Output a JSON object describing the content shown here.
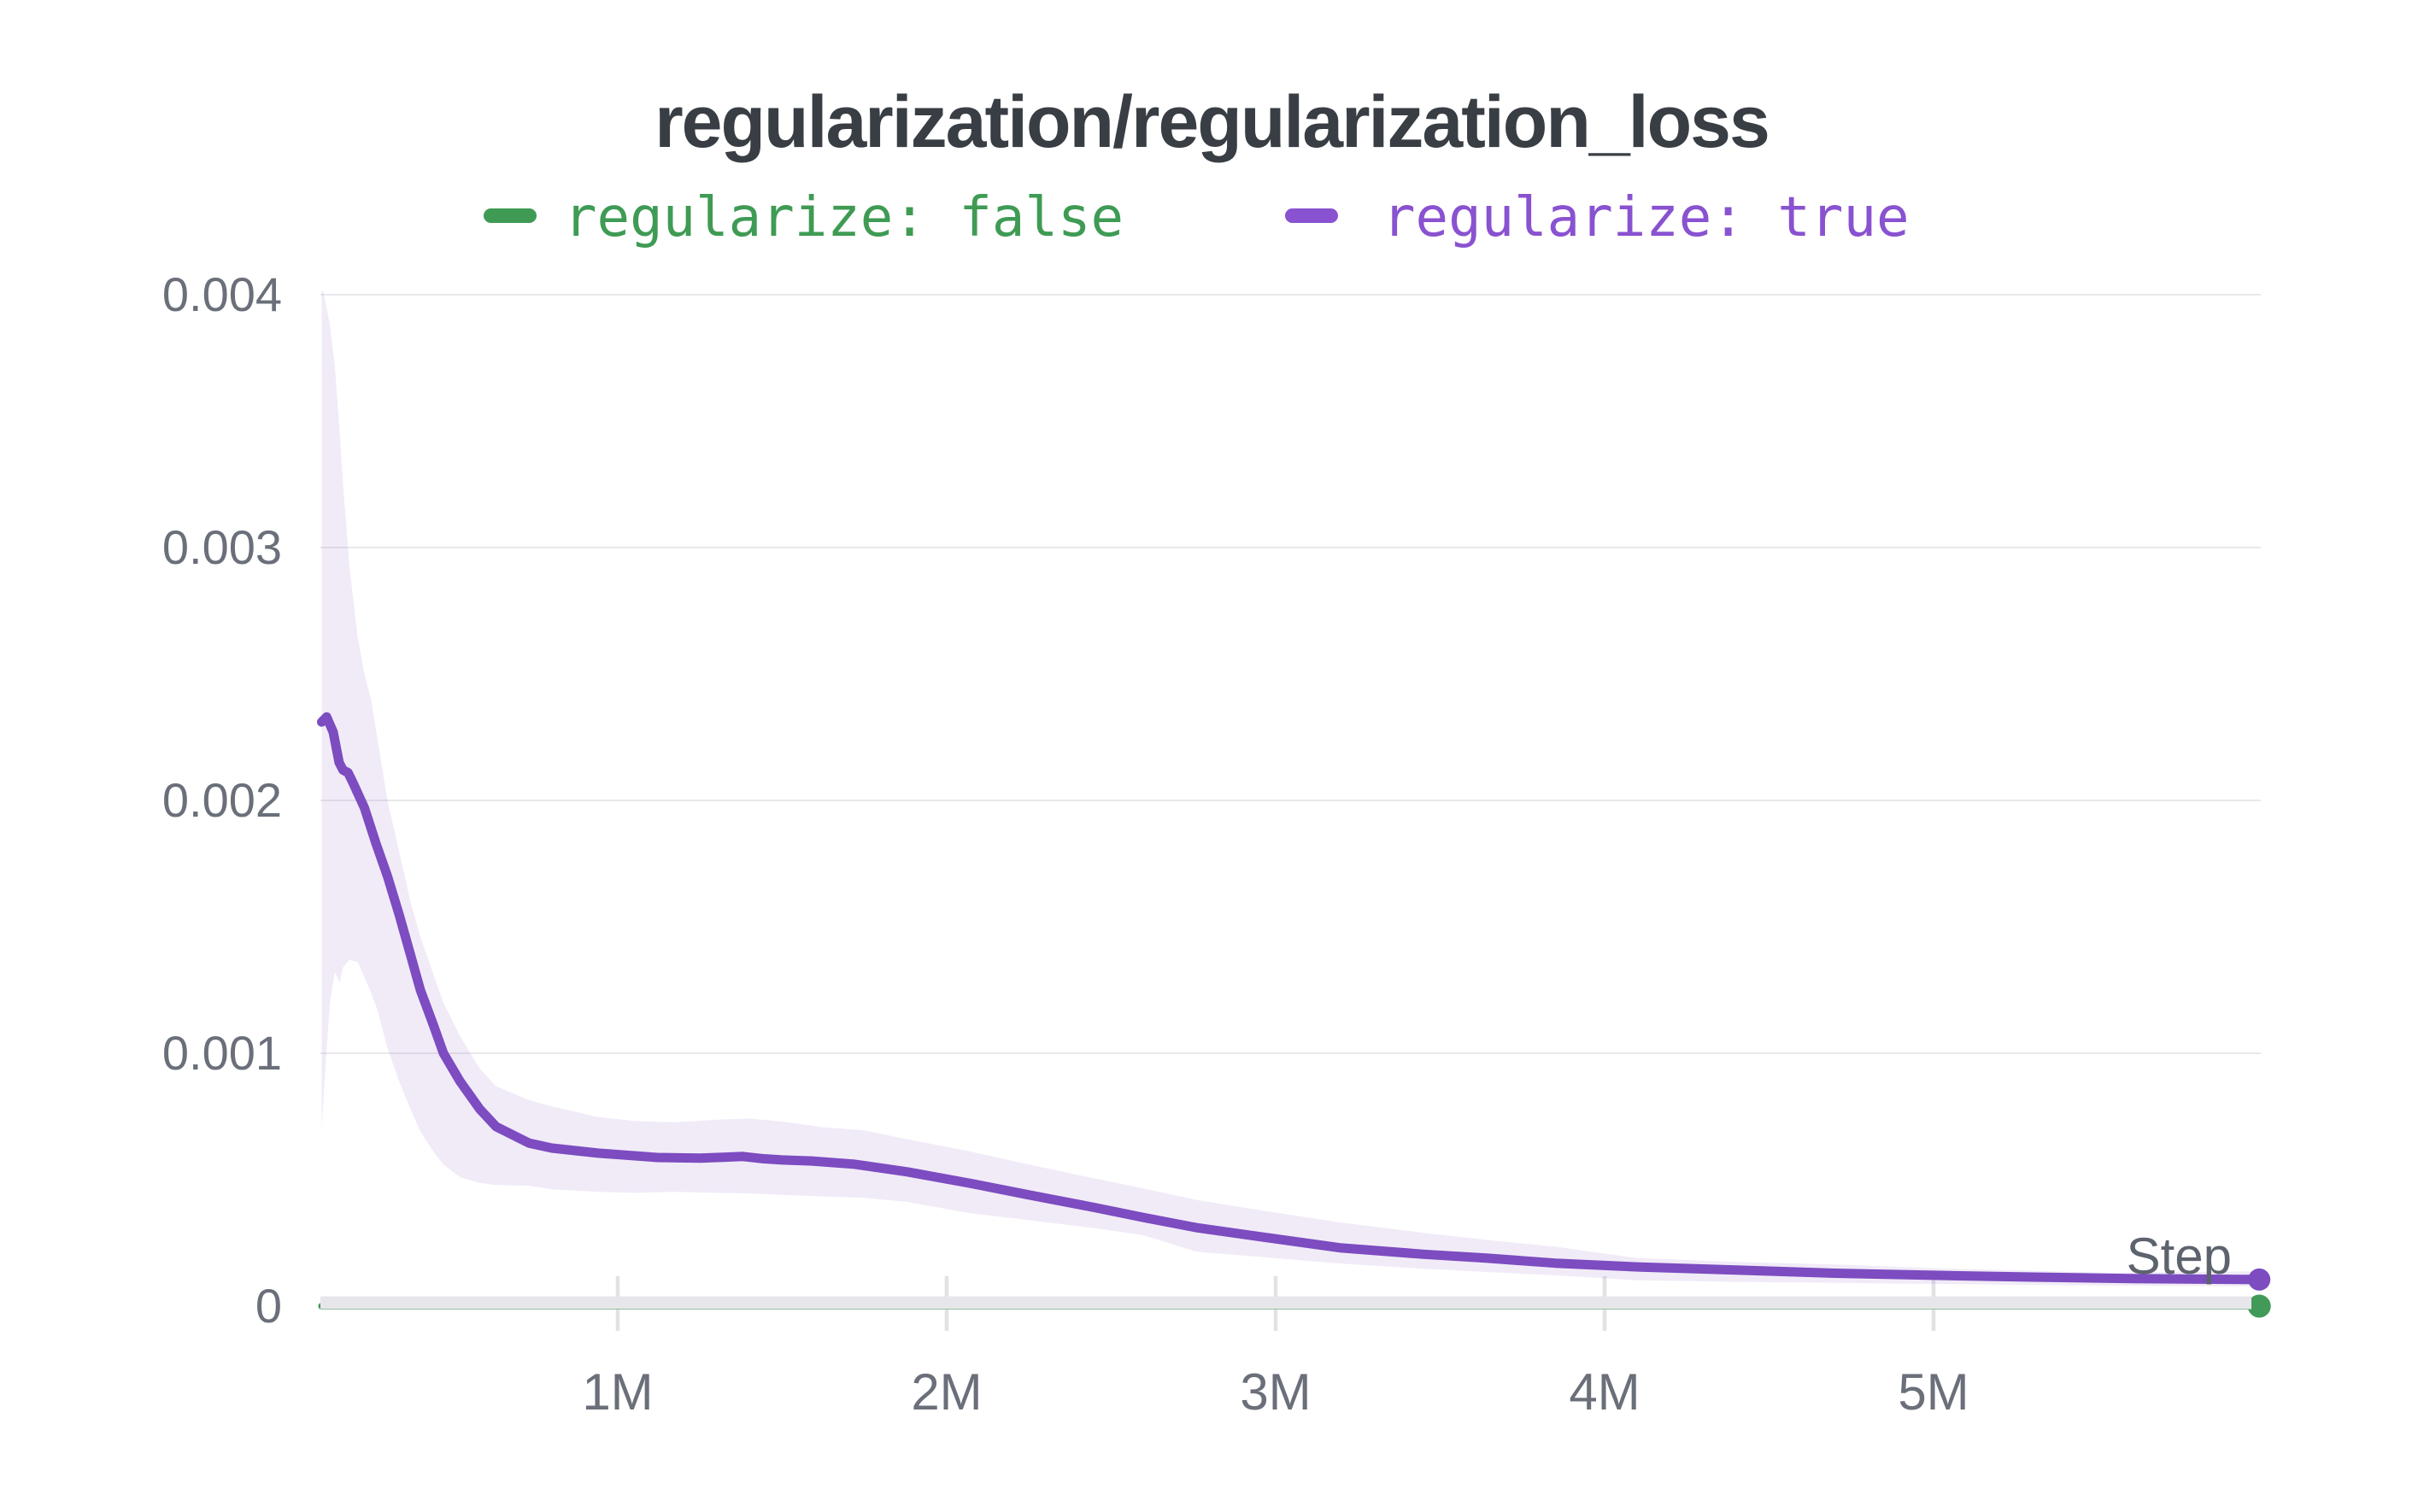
{
  "title": "regularization/regularization_loss",
  "axis": {
    "x_label": "Step",
    "y_tick_labels": [
      "0",
      "0.001",
      "0.002",
      "0.003",
      "0.004"
    ],
    "x_tick_labels": [
      "1M",
      "2M",
      "3M",
      "4M",
      "5M"
    ]
  },
  "colors": {
    "background": "#ffffff",
    "title": "#393e44",
    "gridline": "#e9e9ec",
    "axis_line": "#e7e6ea",
    "tick_mark": "#e2e1e6",
    "tick_label": "#6a6f7a",
    "step_label": "#5d636d",
    "series_false_green": "#419a58",
    "series_true_purple": "#7c4cc0",
    "band_fill": "rgba(124,76,193,0.11)"
  },
  "chart_data": {
    "type": "line",
    "title": "regularization/regularization_loss",
    "xlabel": "Step",
    "ylabel": "",
    "x_unit": "million steps",
    "xlim": [
      0.1,
      5.99
    ],
    "ylim": [
      0,
      0.004
    ],
    "grid": "horizontal",
    "legend_position": "top",
    "x_ticks": [
      {
        "value": 1,
        "label": "1M"
      },
      {
        "value": 2,
        "label": "2M"
      },
      {
        "value": 3,
        "label": "3M"
      },
      {
        "value": 4,
        "label": "4M"
      },
      {
        "value": 5,
        "label": "5M"
      }
    ],
    "y_ticks": [
      {
        "value": 0,
        "label": "0"
      },
      {
        "value": 0.001,
        "label": "0.001"
      },
      {
        "value": 0.002,
        "label": "0.002"
      },
      {
        "value": 0.003,
        "label": "0.003"
      },
      {
        "value": 0.004,
        "label": "0.004"
      }
    ],
    "series": [
      {
        "name": "regularize: false",
        "color": "#419a58",
        "legend_color": "#3f9b54",
        "endpoint_dot": true,
        "x": [
          0.1,
          5.99
        ],
        "y": [
          0,
          0
        ]
      },
      {
        "name": "regularize: true",
        "color": "#7c4cc0",
        "legend_color": "#8952d0",
        "endpoint_dot": true,
        "x": [
          0.1,
          0.115,
          0.135,
          0.153,
          0.165,
          0.18,
          0.195,
          0.23,
          0.265,
          0.3,
          0.335,
          0.37,
          0.4,
          0.44,
          0.47,
          0.52,
          0.58,
          0.63,
          0.73,
          0.8,
          0.94,
          1.12,
          1.25,
          1.32,
          1.38,
          1.44,
          1.5,
          1.59,
          1.72,
          1.88,
          2.07,
          2.25,
          2.45,
          2.6,
          2.76,
          2.95,
          3.2,
          3.45,
          3.64,
          3.85,
          4.1,
          4.4,
          4.7,
          5.0,
          5.3,
          5.6,
          5.99
        ],
        "y": [
          0.00231,
          0.00233,
          0.00227,
          0.00215,
          0.00212,
          0.00211,
          0.00207,
          0.00197,
          0.00183,
          0.0017,
          0.00155,
          0.00139,
          0.00125,
          0.00111,
          0.001,
          0.00089,
          0.00078,
          0.00071,
          0.000645,
          0.000625,
          0.000605,
          0.000588,
          0.000585,
          0.000589,
          0.000592,
          0.000583,
          0.000578,
          0.000574,
          0.000561,
          0.000531,
          0.000486,
          0.00044,
          0.00039,
          0.00035,
          0.00031,
          0.000275,
          0.00023,
          0.000205,
          0.00019,
          0.00017,
          0.000155,
          0.000143,
          0.00013,
          0.000122,
          0.000115,
          0.000109,
          0.000105
        ],
        "band": {
          "x": [
            0.1,
            0.11,
            0.125,
            0.14,
            0.155,
            0.165,
            0.185,
            0.21,
            0.23,
            0.25,
            0.27,
            0.3,
            0.335,
            0.37,
            0.4,
            0.44,
            0.47,
            0.52,
            0.58,
            0.63,
            0.73,
            0.8,
            0.94,
            1.05,
            1.17,
            1.3,
            1.4,
            1.5,
            1.62,
            1.75,
            1.88,
            2.07,
            2.25,
            2.45,
            2.6,
            2.76,
            2.95,
            3.2,
            3.45,
            3.64,
            3.85,
            4.1,
            4.4,
            4.7,
            5.0,
            5.53,
            5.99
          ],
          "top": [
            0.00405,
            0.00398,
            0.00388,
            0.00372,
            0.00345,
            0.00325,
            0.00292,
            0.00264,
            0.0025,
            0.0024,
            0.00224,
            0.002,
            0.0018,
            0.0016,
            0.00146,
            0.00131,
            0.0012,
            0.00107,
            0.00094,
            0.00087,
            0.000815,
            0.00079,
            0.000748,
            0.000732,
            0.000727,
            0.000737,
            0.000742,
            0.00073,
            0.000708,
            0.000695,
            0.00066,
            0.000612,
            0.00056,
            0.000505,
            0.000465,
            0.00042,
            0.00038,
            0.00033,
            0.00029,
            0.000262,
            0.000235,
            0.00019,
            0.000175,
            0.000165,
            0.00015,
            0.000132,
            0.000138
          ],
          "bottom": [
            0.0007,
            0.00092,
            0.0012,
            0.00132,
            0.00128,
            0.00134,
            0.00137,
            0.00136,
            0.0013,
            0.00124,
            0.00117,
            0.00102,
            0.00089,
            0.00078,
            0.00069,
            0.00061,
            0.00056,
            0.00051,
            0.000487,
            0.000479,
            0.000476,
            0.000462,
            0.000452,
            0.000448,
            0.000452,
            0.000448,
            0.000446,
            0.00044,
            0.000434,
            0.000428,
            0.000412,
            0.000368,
            0.00034,
            0.000308,
            0.00028,
            0.000215,
            0.000195,
            0.000168,
            0.000148,
            0.000135,
            0.000122,
            0.000102,
            9.6e-05,
            9.2e-05,
            8.8e-05,
            8.1e-05,
            7.8e-05
          ]
        }
      }
    ]
  }
}
